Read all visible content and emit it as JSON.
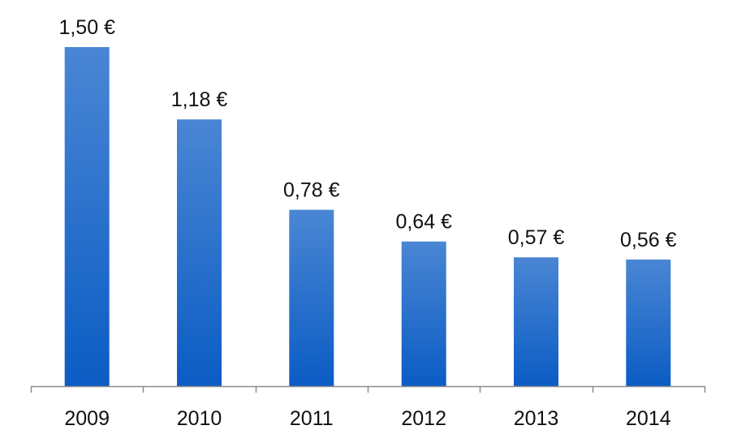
{
  "chart_data": {
    "type": "bar",
    "categories": [
      "2009",
      "2010",
      "2011",
      "2012",
      "2013",
      "2014"
    ],
    "values": [
      1.5,
      1.18,
      0.78,
      0.64,
      0.57,
      0.56
    ],
    "data_labels": [
      "1,50 €",
      "1,18 €",
      "0,78 €",
      "0,64 €",
      "0,57 €",
      "0,56 €"
    ],
    "title": "",
    "xlabel": "",
    "ylabel": "",
    "ylim": [
      0,
      1.5
    ],
    "grid": false,
    "legend": "none",
    "colors": {
      "bar_top": "#4a86d4",
      "bar_bottom": "#0b5cc4",
      "axis": "#8c8c8c",
      "text": "#111111"
    }
  }
}
